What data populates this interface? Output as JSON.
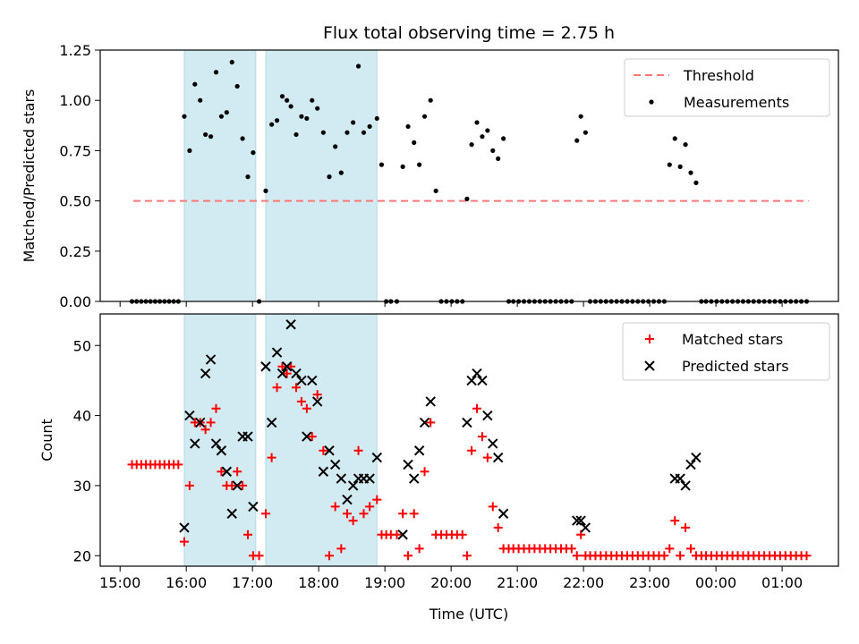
{
  "chart_data": {
    "title": "Flux total observing time = 2.75 h",
    "x_axis": {
      "label": "Time (UTC)",
      "tick_labels": [
        "15:00",
        "16:00",
        "17:00",
        "18:00",
        "19:00",
        "20:00",
        "21:00",
        "22:00",
        "23:00",
        "00:00",
        "01:00"
      ],
      "tick_values_hours": [
        15,
        16,
        17,
        18,
        19,
        20,
        21,
        22,
        23,
        24,
        25
      ],
      "range_hours": [
        14.7,
        25.85
      ]
    },
    "shaded_intervals_hours": [
      [
        15.97,
        17.05
      ],
      [
        17.2,
        18.88
      ]
    ],
    "shade_color": "#add8e6",
    "panels": [
      {
        "type": "scatter",
        "ylabel": "Matched/Predicted stars",
        "ylim": [
          0,
          1.25
        ],
        "yticks": [
          "0.00",
          "0.25",
          "0.50",
          "0.75",
          "1.00",
          "1.25"
        ],
        "ytick_values": [
          0,
          0.25,
          0.5,
          0.75,
          1.0,
          1.25
        ],
        "legend": {
          "position": "top-right",
          "entries": [
            {
              "label": "Threshold",
              "style": "dashed-line",
              "color": "#ff7777"
            },
            {
              "label": "Measurements",
              "style": "dot",
              "color": "#000000"
            }
          ]
        },
        "threshold": {
          "value": 0.5,
          "x_range": [
            15.2,
            25.4
          ],
          "color": "#ff7777"
        },
        "series": [
          {
            "name": "Measurements",
            "color": "#000000",
            "x": [
              15.18,
              15.25,
              15.32,
              15.39,
              15.46,
              15.53,
              15.6,
              15.67,
              15.74,
              15.81,
              15.88,
              15.97,
              16.05,
              16.13,
              16.21,
              16.29,
              16.37,
              16.45,
              16.53,
              16.61,
              16.69,
              16.77,
              16.85,
              16.93,
              17.01,
              17.1,
              17.2,
              17.29,
              17.37,
              17.45,
              17.52,
              17.58,
              17.66,
              17.74,
              17.82,
              17.9,
              17.98,
              18.07,
              18.16,
              18.25,
              18.34,
              18.43,
              18.52,
              18.6,
              18.68,
              18.77,
              18.88,
              18.95,
              19.02,
              19.09,
              19.18,
              19.27,
              19.35,
              19.44,
              19.52,
              19.6,
              19.69,
              19.77,
              19.85,
              19.93,
              20.01,
              20.09,
              20.17,
              20.24,
              20.31,
              20.39,
              20.47,
              20.55,
              20.63,
              20.71,
              20.79,
              20.87,
              20.94,
              21.02,
              21.1,
              21.18,
              21.26,
              21.34,
              21.42,
              21.5,
              21.58,
              21.66,
              21.74,
              21.82,
              21.9,
              21.96,
              22.03,
              22.1,
              22.18,
              22.26,
              22.34,
              22.42,
              22.5,
              22.58,
              22.66,
              22.74,
              22.82,
              22.9,
              22.98,
              23.06,
              23.14,
              23.22,
              23.3,
              23.38,
              23.46,
              23.54,
              23.62,
              23.7,
              23.78,
              23.85,
              23.93,
              24.01,
              24.09,
              24.17,
              24.25,
              24.33,
              24.41,
              24.49,
              24.57,
              24.65,
              24.73,
              24.81,
              24.89,
              24.97,
              25.05,
              25.13,
              25.21,
              25.29,
              25.37
            ],
            "y": [
              0,
              0,
              0,
              0,
              0,
              0,
              0,
              0,
              0,
              0,
              0,
              0.92,
              0.75,
              1.08,
              1.0,
              0.83,
              0.82,
              1.14,
              0.92,
              0.94,
              1.19,
              1.07,
              0.81,
              0.62,
              0.74,
              0,
              0.55,
              0.88,
              0.9,
              1.02,
              1.0,
              0.97,
              0.83,
              0.92,
              0.91,
              1.0,
              0.96,
              0.84,
              0.62,
              0.77,
              0.64,
              0.84,
              0.89,
              1.17,
              0.84,
              0.87,
              0.91,
              0.68,
              0,
              0,
              0,
              0.67,
              0.87,
              0.79,
              0.68,
              0.92,
              1.0,
              0.55,
              0,
              0,
              0,
              0,
              0,
              0.51,
              0.78,
              0.89,
              0.82,
              0.85,
              0.75,
              0.71,
              0.81,
              0,
              0,
              0,
              0,
              0,
              0,
              0,
              0,
              0,
              0,
              0,
              0,
              0,
              0.8,
              0.92,
              0.84,
              0,
              0,
              0,
              0,
              0,
              0,
              0,
              0,
              0,
              0,
              0,
              0,
              0,
              0,
              0,
              0.68,
              0.81,
              0.67,
              0.78,
              0.64,
              0.59,
              0,
              0,
              0,
              0,
              0,
              0,
              0,
              0,
              0,
              0,
              0,
              0,
              0,
              0,
              0,
              0,
              0,
              0,
              0,
              0,
              0
            ]
          }
        ]
      },
      {
        "type": "scatter",
        "ylabel": "Count",
        "ylim": [
          18.5,
          54.5
        ],
        "yticks": [
          "20",
          "30",
          "40",
          "50"
        ],
        "ytick_values": [
          20,
          30,
          40,
          50
        ],
        "legend": {
          "position": "top-right",
          "entries": [
            {
              "label": "Matched stars",
              "style": "plus",
              "color": "#ff0000"
            },
            {
              "label": "Predicted stars",
              "style": "cross",
              "color": "#000000"
            }
          ]
        },
        "series": [
          {
            "name": "Matched stars",
            "marker": "plus",
            "color": "#ff0000",
            "x": [
              15.18,
              15.25,
              15.32,
              15.39,
              15.46,
              15.53,
              15.6,
              15.67,
              15.74,
              15.81,
              15.88,
              15.97,
              16.05,
              16.13,
              16.21,
              16.29,
              16.37,
              16.45,
              16.53,
              16.61,
              16.69,
              16.77,
              16.85,
              16.93,
              17.01,
              17.1,
              17.2,
              17.29,
              17.37,
              17.45,
              17.52,
              17.58,
              17.66,
              17.74,
              17.82,
              17.9,
              17.98,
              18.07,
              18.16,
              18.25,
              18.34,
              18.43,
              18.52,
              18.6,
              18.68,
              18.77,
              18.88,
              18.95,
              19.02,
              19.09,
              19.18,
              19.27,
              19.35,
              19.44,
              19.52,
              19.6,
              19.69,
              19.77,
              19.85,
              19.93,
              20.01,
              20.09,
              20.17,
              20.24,
              20.31,
              20.39,
              20.47,
              20.55,
              20.63,
              20.71,
              20.79,
              20.87,
              20.94,
              21.02,
              21.1,
              21.18,
              21.26,
              21.34,
              21.42,
              21.5,
              21.58,
              21.66,
              21.74,
              21.82,
              21.9,
              21.96,
              22.03,
              22.1,
              22.18,
              22.26,
              22.34,
              22.42,
              22.5,
              22.58,
              22.66,
              22.74,
              22.82,
              22.9,
              22.98,
              23.06,
              23.14,
              23.22,
              23.3,
              23.38,
              23.46,
              23.54,
              23.62,
              23.7,
              23.78,
              23.85,
              23.93,
              24.01,
              24.09,
              24.17,
              24.25,
              24.33,
              24.41,
              24.49,
              24.57,
              24.65,
              24.73,
              24.81,
              24.89,
              24.97,
              25.05,
              25.13,
              25.21,
              25.29,
              25.37
            ],
            "y": [
              33,
              33,
              33,
              33,
              33,
              33,
              33,
              33,
              33,
              33,
              33,
              22,
              30,
              39,
              39,
              38,
              39,
              41,
              32,
              30,
              30,
              32,
              30,
              23,
              20,
              20,
              26,
              34,
              44,
              47,
              46,
              47,
              44,
              42,
              41,
              37,
              43,
              35,
              20,
              27,
              21,
              26,
              25,
              35,
              26,
              27,
              28,
              23,
              23,
              23,
              23,
              26,
              20,
              26,
              21,
              32,
              39,
              23,
              23,
              23,
              23,
              23,
              23,
              20,
              35,
              41,
              37,
              34,
              27,
              24,
              21,
              21,
              21,
              21,
              21,
              21,
              21,
              21,
              21,
              21,
              21,
              21,
              21,
              21,
              20,
              23,
              20,
              20,
              20,
              20,
              20,
              20,
              20,
              20,
              20,
              20,
              20,
              20,
              20,
              20,
              20,
              20,
              21,
              25,
              20,
              24,
              21,
              20,
              20,
              20,
              20,
              20,
              20,
              20,
              20,
              20,
              20,
              20,
              20,
              20,
              20,
              20,
              20,
              20,
              20,
              20,
              20,
              20,
              20
            ]
          },
          {
            "name": "Predicted stars",
            "marker": "cross",
            "color": "#000000",
            "x": [
              15.97,
              16.05,
              16.13,
              16.21,
              16.29,
              16.37,
              16.45,
              16.53,
              16.61,
              16.69,
              16.77,
              16.85,
              16.93,
              17.01,
              17.2,
              17.29,
              17.37,
              17.45,
              17.52,
              17.58,
              17.66,
              17.74,
              17.82,
              17.9,
              17.98,
              18.07,
              18.16,
              18.25,
              18.34,
              18.43,
              18.52,
              18.6,
              18.68,
              18.77,
              18.88,
              19.27,
              19.35,
              19.44,
              19.52,
              19.6,
              19.69,
              20.24,
              20.31,
              20.39,
              20.47,
              20.55,
              20.63,
              20.71,
              20.79,
              21.9,
              21.96,
              22.03,
              23.38,
              23.46,
              23.54,
              23.62,
              23.7
            ],
            "y": [
              24,
              40,
              36,
              39,
              46,
              48,
              36,
              35,
              32,
              26,
              30,
              37,
              37,
              27,
              47,
              39,
              49,
              46,
              47,
              53,
              46,
              45,
              37,
              45,
              42,
              32,
              35,
              33,
              31,
              28,
              30,
              31,
              31,
              31,
              34,
              23,
              33,
              31,
              35,
              39,
              42,
              39,
              45,
              46,
              45,
              40,
              36,
              34,
              26,
              25,
              25,
              24,
              31,
              31,
              30,
              33,
              34
            ]
          }
        ]
      }
    ]
  }
}
